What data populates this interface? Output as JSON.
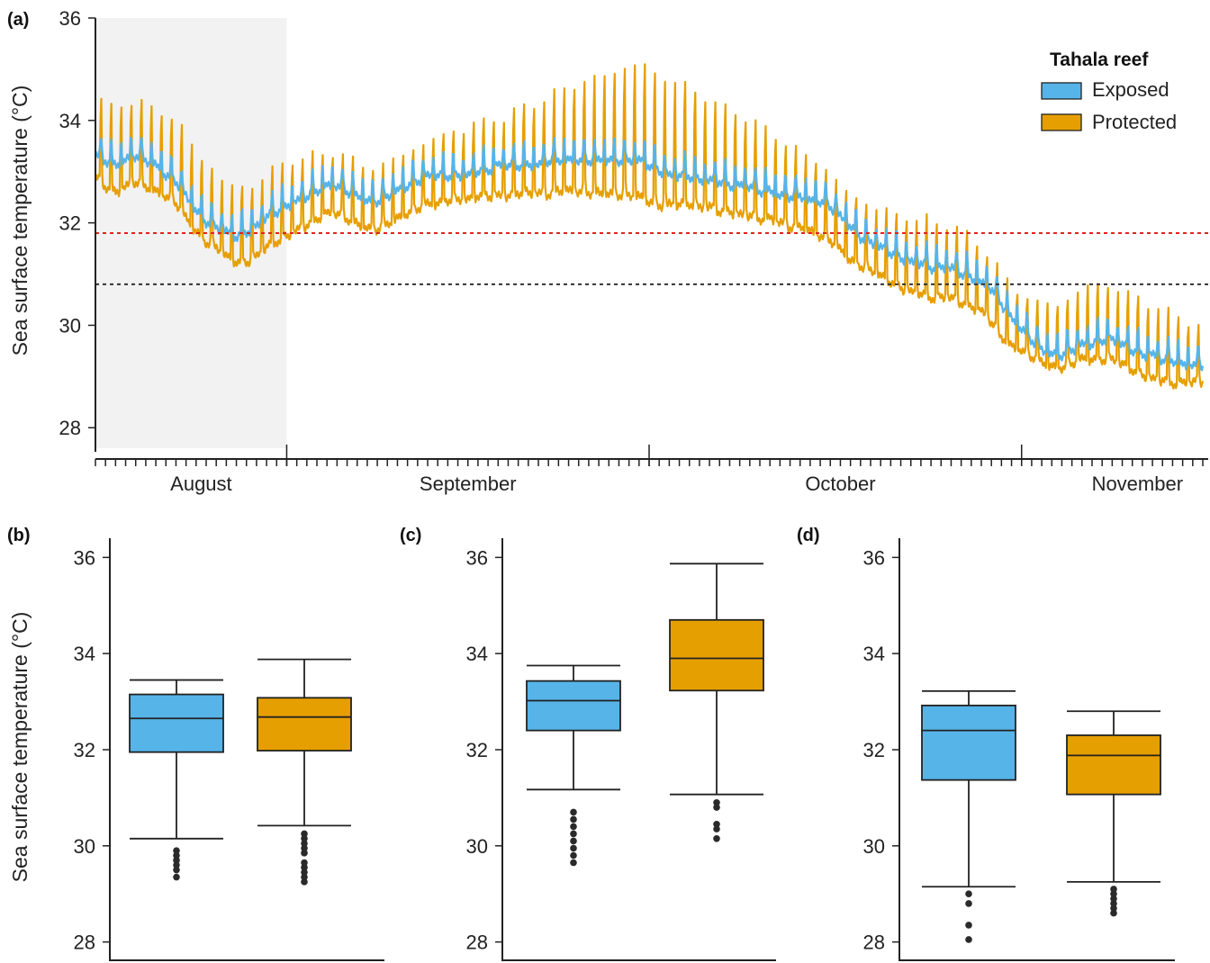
{
  "colors": {
    "exposed": "#56b4e9",
    "protected": "#e69f00",
    "threshold_red": "#e3231c",
    "threshold_black": "#333333",
    "shade": "#f2f2f2",
    "outlier": "#2a2a2a"
  },
  "panels": {
    "a": {
      "letter": "(a)"
    },
    "b": {
      "letter": "(b)"
    },
    "c": {
      "letter": "(c)"
    },
    "d": {
      "letter": "(d)"
    }
  },
  "legend": {
    "title": "Tahala reef",
    "items": [
      {
        "label": "Exposed",
        "color": "#56b4e9"
      },
      {
        "label": "Protected",
        "color": "#e69f00"
      }
    ]
  },
  "chart_data": [
    {
      "panel": "a",
      "type": "line",
      "ylabel": "Sea surface temperature (°C)",
      "ylim": [
        27.6,
        36
      ],
      "yticks": [
        28,
        30,
        32,
        34,
        36
      ],
      "x_range_days": [
        0,
        110
      ],
      "month_labels": [
        {
          "label": "August",
          "day": 10.5
        },
        {
          "label": "September",
          "day": 37
        },
        {
          "label": "October",
          "day": 74
        },
        {
          "label": "November",
          "day": 103.5
        }
      ],
      "month_boundaries_days": [
        19,
        55,
        92
      ],
      "shaded_region_days": [
        0,
        19
      ],
      "thresholds": [
        {
          "value": 31.8,
          "color": "#e3231c",
          "style": "dotted"
        },
        {
          "value": 30.8,
          "color": "#333333",
          "style": "dotted"
        }
      ],
      "series": [
        {
          "name": "Exposed",
          "color": "#56b4e9",
          "daily_base": [
            33.4,
            33.3,
            33.2,
            33.3,
            33.4,
            33.3,
            33.2,
            33.0,
            32.9,
            32.6,
            32.3,
            32.1,
            32.0,
            31.9,
            31.8,
            31.9,
            32.0,
            32.2,
            32.3,
            32.4,
            32.5,
            32.6,
            32.7,
            32.8,
            32.8,
            32.7,
            32.6,
            32.5,
            32.5,
            32.6,
            32.7,
            32.8,
            32.9,
            33.0,
            33.0,
            33.0,
            33.0,
            33.0,
            33.1,
            33.1,
            33.2,
            33.2,
            33.2,
            33.2,
            33.2,
            33.3,
            33.3,
            33.3,
            33.3,
            33.3,
            33.3,
            33.3,
            33.3,
            33.3,
            33.3,
            33.2,
            33.1,
            33.0,
            33.0,
            33.0,
            32.9,
            32.9,
            32.9,
            32.8,
            32.8,
            32.8,
            32.7,
            32.7,
            32.6,
            32.6,
            32.6,
            32.5,
            32.5,
            32.4,
            32.2,
            32.0,
            31.8,
            31.7,
            31.6,
            31.5,
            31.4,
            31.3,
            31.3,
            31.2,
            31.2,
            31.2,
            31.1,
            31.0,
            30.9,
            30.8,
            30.5,
            30.2,
            30.0,
            29.8,
            29.6,
            29.5,
            29.5,
            29.6,
            29.7,
            29.7,
            29.8,
            29.8,
            29.7,
            29.6,
            29.5,
            29.5,
            29.4,
            29.4,
            29.3,
            29.3,
            29.3
          ],
          "daily_amplitude": 0.45
        },
        {
          "name": "Protected",
          "color": "#e69f00",
          "daily_base": [
            33.2,
            33.0,
            32.9,
            33.0,
            33.1,
            33.0,
            32.9,
            32.8,
            32.7,
            32.4,
            32.1,
            31.9,
            31.8,
            31.6,
            31.5,
            31.5,
            31.6,
            31.8,
            31.9,
            32.0,
            32.1,
            32.2,
            32.3,
            32.4,
            32.4,
            32.3,
            32.2,
            32.1,
            32.1,
            32.2,
            32.3,
            32.4,
            32.5,
            32.6,
            32.6,
            32.7,
            32.7,
            32.7,
            32.8,
            32.8,
            32.8,
            32.8,
            32.9,
            32.9,
            32.9,
            32.9,
            33.0,
            33.0,
            33.0,
            33.0,
            33.0,
            33.0,
            33.0,
            33.0,
            33.0,
            32.9,
            32.8,
            32.8,
            32.8,
            32.8,
            32.7,
            32.7,
            32.6,
            32.6,
            32.5,
            32.5,
            32.4,
            32.4,
            32.3,
            32.2,
            32.2,
            32.1,
            32.0,
            31.9,
            31.7,
            31.5,
            31.4,
            31.3,
            31.2,
            31.1,
            31.0,
            30.9,
            30.9,
            30.8,
            30.8,
            30.8,
            30.7,
            30.6,
            30.5,
            30.3,
            30.0,
            29.8,
            29.7,
            29.6,
            29.5,
            29.4,
            29.4,
            29.5,
            29.6,
            29.6,
            29.6,
            29.6,
            29.5,
            29.4,
            29.3,
            29.2,
            29.2,
            29.1,
            29.1,
            29.1,
            29.1
          ],
          "daily_amplitude": [
            2.0,
            2.0,
            2.1,
            2.0,
            2.0,
            2.0,
            2.0,
            2.0,
            2.1,
            2.0,
            1.9,
            1.9,
            1.8,
            1.8,
            1.8,
            1.8,
            1.8,
            1.8,
            1.8,
            1.8,
            1.7,
            1.6,
            1.5,
            1.5,
            1.5,
            1.5,
            1.5,
            1.5,
            1.5,
            1.5,
            1.5,
            1.5,
            1.5,
            1.6,
            1.6,
            1.7,
            1.7,
            1.8,
            1.8,
            1.9,
            1.9,
            2.0,
            2.1,
            2.2,
            2.3,
            2.4,
            2.5,
            2.6,
            2.7,
            2.8,
            2.9,
            3.0,
            3.1,
            3.2,
            3.3,
            3.2,
            3.1,
            3.0,
            2.9,
            2.8,
            2.7,
            2.6,
            2.5,
            2.5,
            2.4,
            2.3,
            2.2,
            2.1,
            2.0,
            1.9,
            1.8,
            1.8,
            1.7,
            1.6,
            1.6,
            1.6,
            1.6,
            1.6,
            1.7,
            1.7,
            1.8,
            1.8,
            1.9,
            1.8,
            1.8,
            1.8,
            1.7,
            1.6,
            1.6,
            1.6,
            1.5,
            1.4,
            1.4,
            1.4,
            1.5,
            1.5,
            1.6,
            1.7,
            1.8,
            1.8,
            1.8,
            1.8,
            1.8,
            1.8,
            1.8,
            1.8,
            1.7,
            1.6,
            1.5,
            1.4,
            1.3
          ]
        }
      ]
    },
    {
      "panel": "b",
      "type": "box",
      "ylabel": "Sea surface temperature (°C)",
      "ylim": [
        27.6,
        36.4
      ],
      "yticks": [
        28,
        30,
        32,
        34,
        36
      ],
      "boxes": [
        {
          "name": "Exposed",
          "color": "#56b4e9",
          "whisker_low": 30.15,
          "q1": 31.95,
          "median": 32.65,
          "q3": 33.15,
          "whisker_high": 33.45,
          "outliers": [
            29.9,
            29.8,
            29.7,
            29.6,
            29.5,
            29.35
          ]
        },
        {
          "name": "Protected",
          "color": "#e69f00",
          "whisker_low": 30.42,
          "q1": 31.98,
          "median": 32.68,
          "q3": 33.08,
          "whisker_high": 33.88,
          "outliers": [
            30.25,
            30.15,
            30.05,
            29.95,
            29.85,
            29.65,
            29.55,
            29.45,
            29.35,
            29.25
          ]
        }
      ]
    },
    {
      "panel": "c",
      "type": "box",
      "ylim": [
        27.6,
        36.4
      ],
      "yticks": [
        28,
        30,
        32,
        34,
        36
      ],
      "boxes": [
        {
          "name": "Exposed",
          "color": "#56b4e9",
          "whisker_low": 31.17,
          "q1": 32.4,
          "median": 33.02,
          "q3": 33.43,
          "whisker_high": 33.75,
          "outliers": [
            30.7,
            30.55,
            30.4,
            30.25,
            30.1,
            29.95,
            29.8,
            29.65
          ]
        },
        {
          "name": "Protected",
          "color": "#e69f00",
          "whisker_low": 31.07,
          "q1": 33.23,
          "median": 33.9,
          "q3": 34.7,
          "whisker_high": 35.87,
          "outliers": [
            30.9,
            30.8,
            30.45,
            30.35,
            30.15
          ]
        }
      ]
    },
    {
      "panel": "d",
      "type": "box",
      "ylim": [
        27.6,
        36.4
      ],
      "yticks": [
        28,
        30,
        32,
        34,
        36
      ],
      "boxes": [
        {
          "name": "Exposed",
          "color": "#56b4e9",
          "whisker_low": 29.15,
          "q1": 31.37,
          "median": 32.4,
          "q3": 32.92,
          "whisker_high": 33.22,
          "outliers": [
            29.0,
            28.8,
            28.35,
            28.05
          ]
        },
        {
          "name": "Protected",
          "color": "#e69f00",
          "whisker_low": 29.25,
          "q1": 31.07,
          "median": 31.88,
          "q3": 32.3,
          "whisker_high": 32.8,
          "outliers": [
            29.1,
            29.0,
            28.9,
            28.8,
            28.7,
            28.6
          ]
        }
      ]
    }
  ]
}
